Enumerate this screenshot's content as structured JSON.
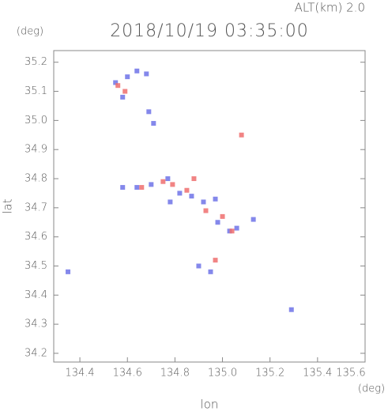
{
  "chart_data": {
    "type": "scatter",
    "title": "2018/10/19 03:35:00",
    "subtitle": "ALT(km) 2.0",
    "x_label": "lon",
    "y_label": "lat",
    "x_unit": "(deg)",
    "y_unit": "(deg)",
    "xlim": [
      134.29,
      135.6
    ],
    "ylim": [
      34.17,
      35.24
    ],
    "xticks": [
      134.4,
      134.6,
      134.8,
      {
        "value": 135.0,
        "label": "135.0"
      },
      135.2,
      135.4,
      135.6
    ],
    "yticks": [
      34.2,
      34.3,
      34.4,
      34.5,
      34.6,
      34.7,
      34.8,
      34.9,
      {
        "value": 35.0,
        "label": "35.0"
      },
      35.1,
      35.2
    ],
    "series": [
      {
        "color": "#6f73e8",
        "x": [
          134.55,
          134.6,
          134.64,
          134.68,
          134.58,
          134.69,
          134.71,
          134.58,
          134.64,
          134.7,
          134.77,
          134.82,
          134.87,
          134.92,
          134.97,
          134.98,
          135.03,
          135.06,
          134.9,
          134.95,
          134.35,
          135.13,
          135.29,
          134.78
        ],
        "values": [
          35.13,
          35.15,
          35.17,
          35.16,
          35.08,
          35.03,
          34.99,
          34.77,
          34.77,
          34.78,
          34.8,
          34.75,
          34.74,
          34.72,
          34.73,
          34.65,
          34.62,
          34.63,
          34.5,
          34.48,
          34.48,
          34.66,
          34.35,
          34.72
        ]
      },
      {
        "color": "#ee6e6e",
        "x": [
          134.56,
          134.59,
          134.75,
          134.79,
          134.85,
          134.93,
          135.0,
          135.04,
          135.08,
          134.97,
          134.88,
          134.66
        ],
        "values": [
          35.12,
          35.1,
          34.79,
          34.78,
          34.76,
          34.69,
          34.67,
          34.62,
          34.95,
          34.52,
          34.8,
          34.77
        ]
      }
    ]
  }
}
